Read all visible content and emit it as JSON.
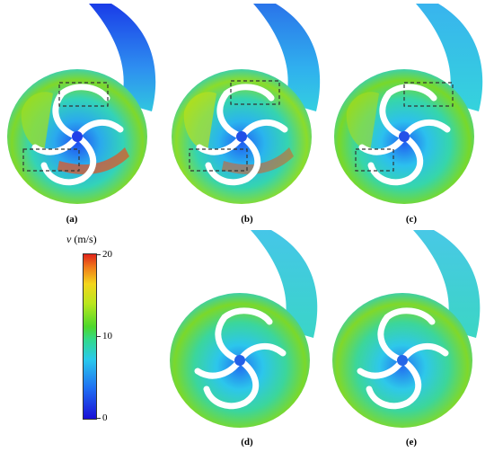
{
  "panels": [
    {
      "id": "a",
      "label": "(a)",
      "has_boxes": true
    },
    {
      "id": "b",
      "label": "(b)",
      "has_boxes": true
    },
    {
      "id": "c",
      "label": "(c)",
      "has_boxes": true
    },
    {
      "id": "d",
      "label": "(d)",
      "has_boxes": false
    },
    {
      "id": "e",
      "label": "(e)",
      "has_boxes": false
    }
  ],
  "colorbar": {
    "symbol": "v",
    "unit": "(m/s)",
    "ticks": [
      "20",
      "10",
      "0"
    ],
    "range": [
      0,
      20
    ],
    "colors": [
      "#1a0fd6",
      "#1f6cf2",
      "#29c9ec",
      "#32d98c",
      "#4dd82b",
      "#b9e61e",
      "#f3d51c",
      "#f07c1a",
      "#e0241a"
    ]
  }
}
